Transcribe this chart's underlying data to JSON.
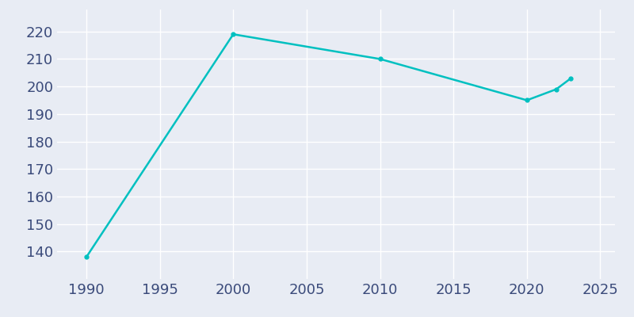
{
  "years": [
    1990,
    2000,
    2010,
    2020,
    2022,
    2023
  ],
  "population": [
    138,
    219,
    210,
    195,
    199,
    203
  ],
  "line_color": "#00C0C0",
  "marker": "o",
  "marker_size": 3.5,
  "line_width": 1.8,
  "background_color": "#E8ECF4",
  "grid_color": "#FFFFFF",
  "tick_color": "#3A4A7A",
  "xlim": [
    1988,
    2026
  ],
  "ylim": [
    130,
    228
  ],
  "xticks": [
    1990,
    1995,
    2000,
    2005,
    2010,
    2015,
    2020,
    2025
  ],
  "yticks": [
    140,
    150,
    160,
    170,
    180,
    190,
    200,
    210,
    220
  ],
  "tick_fontsize": 13
}
